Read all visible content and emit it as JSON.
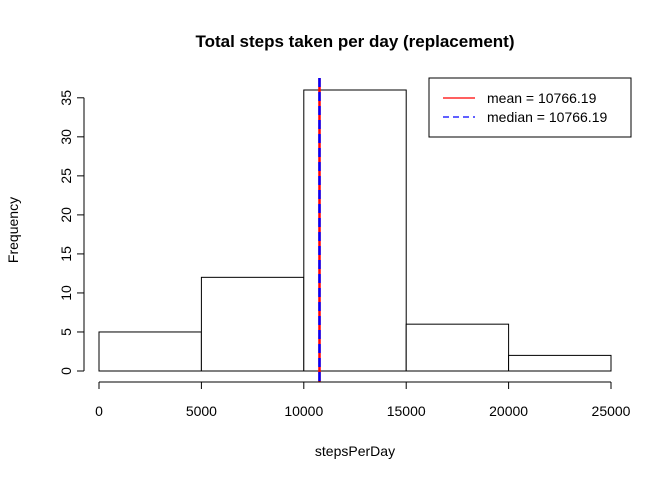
{
  "chart_data": {
    "type": "bar",
    "subtype": "histogram",
    "title": "Total steps taken per day (replacement)",
    "xlabel": "stepsPerDay",
    "ylabel": "Frequency",
    "bins": [
      {
        "x0": 0,
        "x1": 5000,
        "count": 5
      },
      {
        "x0": 5000,
        "x1": 10000,
        "count": 12
      },
      {
        "x0": 10000,
        "x1": 15000,
        "count": 36
      },
      {
        "x0": 15000,
        "x1": 20000,
        "count": 6
      },
      {
        "x0": 20000,
        "x1": 25000,
        "count": 2
      }
    ],
    "xlim": [
      0,
      25000
    ],
    "ylim": [
      0,
      36
    ],
    "x_ticks": [
      0,
      5000,
      10000,
      15000,
      20000,
      25000
    ],
    "y_ticks": [
      0,
      5,
      10,
      15,
      20,
      25,
      30,
      35
    ],
    "grid": false,
    "legend_position": "top-right",
    "reference_lines": [
      {
        "label": "mean = 10766.19",
        "value": 10766.19,
        "color": "#ff0000",
        "style": "solid"
      },
      {
        "label": "median = 10766.19",
        "value": 10766.19,
        "color": "#0000ff",
        "style": "dashed"
      }
    ],
    "colors": {
      "bar_fill": "#ffffff",
      "bar_stroke": "#000000",
      "axis": "#000000"
    }
  }
}
